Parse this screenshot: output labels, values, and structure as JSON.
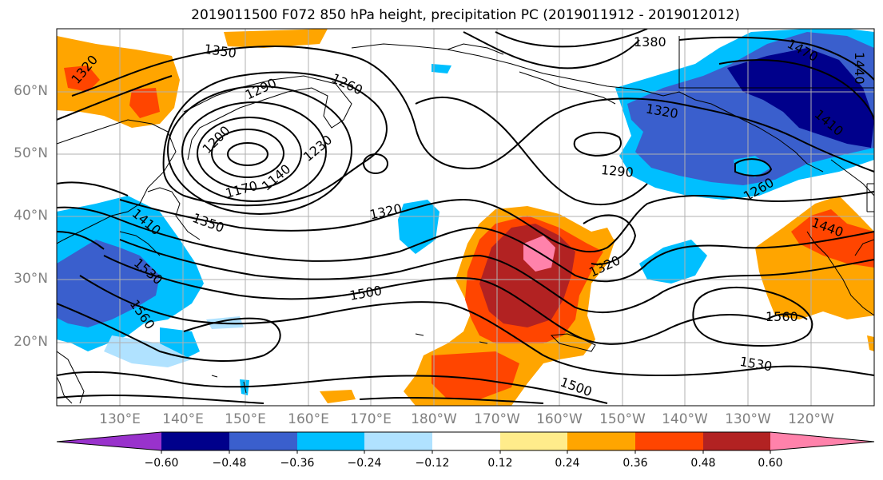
{
  "title": "2019011500 F072 850 hPa height, precipitation PC (2019011912 - 2019012012)",
  "lat_labels": [
    "60°N",
    "50°N",
    "40°N",
    "30°N",
    "20°N"
  ],
  "lon_labels": [
    "130°E",
    "140°E",
    "150°E",
    "160°E",
    "170°E",
    "180°W",
    "170°W",
    "160°W",
    "150°W",
    "140°W",
    "130°W",
    "120°W"
  ],
  "colorbar": {
    "ticks": [
      "−0.60",
      "−0.48",
      "−0.36",
      "−0.24",
      "−0.12",
      "0.12",
      "0.24",
      "0.36",
      "0.48",
      "0.60"
    ],
    "colors": [
      "#9932cc",
      "#00008b",
      "#3a5fcd",
      "#00bfff",
      "#b0e2ff",
      "#ffffff",
      "#ffec8b",
      "#ffa500",
      "#ff4500",
      "#b22222",
      "#ff82ab"
    ]
  },
  "contour_labels": [
    "1320",
    "1350",
    "1290",
    "1260",
    "1200",
    "1230",
    "1170",
    "1140",
    "1350",
    "1320",
    "1380",
    "1470",
    "1440",
    "1410",
    "1320",
    "1290",
    "1260",
    "1410",
    "1530",
    "1560",
    "1500",
    "1320",
    "1440",
    "1560",
    "1530",
    "1500"
  ],
  "colors": {
    "grid": "#b0b0b0",
    "contour": "#000000",
    "axis_text": "#808080"
  }
}
